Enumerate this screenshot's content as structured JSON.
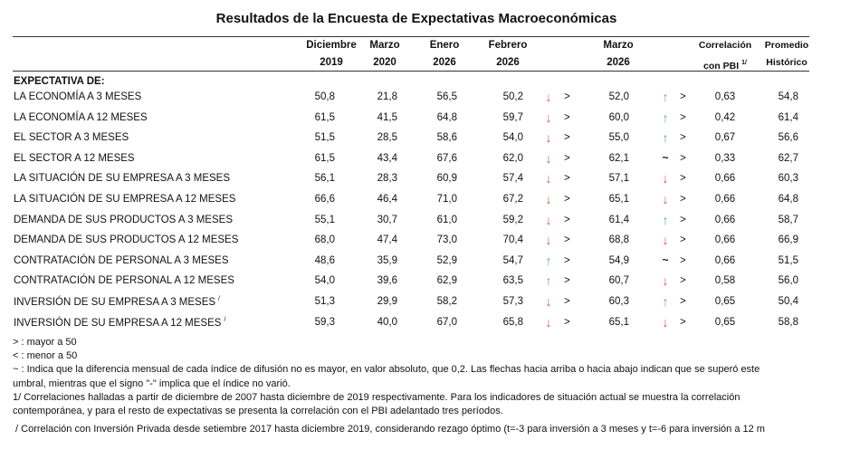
{
  "title": "Resultados de la Encuesta de Expectativas Macroeconómicas",
  "table": {
    "columns": [
      {
        "lines": [
          "Diciembre",
          "2019"
        ]
      },
      {
        "lines": [
          "Marzo",
          "2020"
        ]
      },
      {
        "lines": [
          "Enero",
          "2026"
        ]
      },
      {
        "lines": [
          "Febrero",
          "2026"
        ]
      },
      {
        "lines": [
          "Marzo",
          "2026"
        ]
      },
      {
        "lines": [
          "Correlación",
          "con PBI"
        ],
        "sup": "1/"
      },
      {
        "lines": [
          "Promedio",
          "Histórico"
        ]
      }
    ],
    "section": "EXPECTATIVA DE:",
    "rows": [
      {
        "label": "LA ECONOMÍA A 3 MESES",
        "dic2019": "50,8",
        "mar2020": "21,8",
        "ene2026": "56,5",
        "feb2026": "50,2",
        "feb_trend": "↓",
        "feb_sign": ">",
        "mar2026": "52,0",
        "mar_trend": "↑",
        "mar_sign": ">",
        "corr": "0,63",
        "prom": "54,8"
      },
      {
        "label": "LA ECONOMÍA A 12 MESES",
        "dic2019": "61,5",
        "mar2020": "41,5",
        "ene2026": "64,8",
        "feb2026": "59,7",
        "feb_trend": "↓",
        "feb_sign": ">",
        "mar2026": "60,0",
        "mar_trend": "↑",
        "mar_sign": ">",
        "corr": "0,42",
        "prom": "61,4"
      },
      {
        "label": "EL SECTOR A 3 MESES",
        "dic2019": "51,5",
        "mar2020": "28,5",
        "ene2026": "58,6",
        "feb2026": "54,0",
        "feb_trend": "↓",
        "feb_sign": ">",
        "mar2026": "55,0",
        "mar_trend": "↑",
        "mar_sign": ">",
        "corr": "0,67",
        "prom": "56,6"
      },
      {
        "label": "EL SECTOR A 12 MESES",
        "dic2019": "61,5",
        "mar2020": "43,4",
        "ene2026": "67,6",
        "feb2026": "62,0",
        "feb_trend": "↓",
        "feb_sign": ">",
        "mar2026": "62,1",
        "mar_trend": "~",
        "mar_sign": ">",
        "corr": "0,33",
        "prom": "62,7"
      },
      {
        "label": "LA SITUACIÓN DE SU EMPRESA A 3 MESES",
        "dic2019": "56,1",
        "mar2020": "28,3",
        "ene2026": "60,9",
        "feb2026": "57,4",
        "feb_trend": "↓",
        "feb_sign": ">",
        "mar2026": "57,1",
        "mar_trend": "↓",
        "mar_sign": ">",
        "corr": "0,66",
        "prom": "60,3"
      },
      {
        "label": "LA SITUACIÓN DE SU EMPRESA A 12 MESES",
        "dic2019": "66,6",
        "mar2020": "46,4",
        "ene2026": "71,0",
        "feb2026": "67,2",
        "feb_trend": "↓",
        "feb_sign": ">",
        "mar2026": "65,1",
        "mar_trend": "↓",
        "mar_sign": ">",
        "corr": "0,66",
        "prom": "64,8"
      },
      {
        "label": "DEMANDA DE SUS PRODUCTOS A 3 MESES",
        "dic2019": "55,1",
        "mar2020": "30,7",
        "ene2026": "61,0",
        "feb2026": "59,2",
        "feb_trend": "↓",
        "feb_sign": ">",
        "mar2026": "61,4",
        "mar_trend": "↑",
        "mar_sign": ">",
        "corr": "0,66",
        "prom": "58,7"
      },
      {
        "label": "DEMANDA DE SUS PRODUCTOS A 12 MESES",
        "dic2019": "68,0",
        "mar2020": "47,4",
        "ene2026": "73,0",
        "feb2026": "70,4",
        "feb_trend": "↓",
        "feb_sign": ">",
        "mar2026": "68,8",
        "mar_trend": "↓",
        "mar_sign": ">",
        "corr": "0,66",
        "prom": "66,9"
      },
      {
        "label": "CONTRATACIÓN DE PERSONAL A 3 MESES",
        "dic2019": "48,6",
        "mar2020": "35,9",
        "ene2026": "52,9",
        "feb2026": "54,7",
        "feb_trend": "↑",
        "feb_sign": ">",
        "mar2026": "54,9",
        "mar_trend": "~",
        "mar_sign": ">",
        "corr": "0,66",
        "prom": "51,5"
      },
      {
        "label": "CONTRATACIÓN DE PERSONAL A 12 MESES",
        "dic2019": "54,0",
        "mar2020": "39,6",
        "ene2026": "62,9",
        "feb2026": "63,5",
        "feb_trend": "↑",
        "feb_sign": ">",
        "mar2026": "60,7",
        "mar_trend": "↓",
        "mar_sign": ">",
        "corr": "0,58",
        "prom": "56,0"
      },
      {
        "label": "INVERSIÓN DE SU EMPRESA A 3 MESES",
        "sup": "/",
        "dic2019": "51,3",
        "mar2020": "29,9",
        "ene2026": "58,2",
        "feb2026": "57,3",
        "feb_trend": "↓",
        "feb_sign": ">",
        "mar2026": "60,3",
        "mar_trend": "↑",
        "mar_sign": ">",
        "corr": "0,65",
        "prom": "50,4"
      },
      {
        "label": "INVERSIÓN DE SU EMPRESA A 12 MESES",
        "sup": "/",
        "dic2019": "59,3",
        "mar2020": "40,0",
        "ene2026": "67,0",
        "feb2026": "65,8",
        "feb_trend": "↓",
        "feb_sign": ">",
        "mar2026": "65,1",
        "mar_trend": "↓",
        "mar_sign": ">",
        "corr": "0,65",
        "prom": "58,8"
      }
    ]
  },
  "notes": [
    "> : mayor a 50",
    "< : menor a 50",
    "~ : Indica que la diferencia mensual de cada índice de difusión no es mayor, en valor absoluto, que 0,2. Las flechas hacia arriba o hacia abajo indican que se superó este",
    "umbral, mientras que el signo \"-\" implica que el índice no varió.",
    "1/ Correlaciones halladas a partir de diciembre de 2007 hasta diciembre de 2019 respectivamente. Para los indicadores de situación actual se muestra la correlación",
    "contemporánea, y para el resto de expectativas se presenta la correlación con el PBI adelantado tres períodos.",
    " / Correlación con Inversión Privada desde setiembre 2017 hasta diciembre 2019, considerando rezago óptimo (t=-3 para inversión a 3 meses y t=-6 para inversión a 12 m"
  ]
}
